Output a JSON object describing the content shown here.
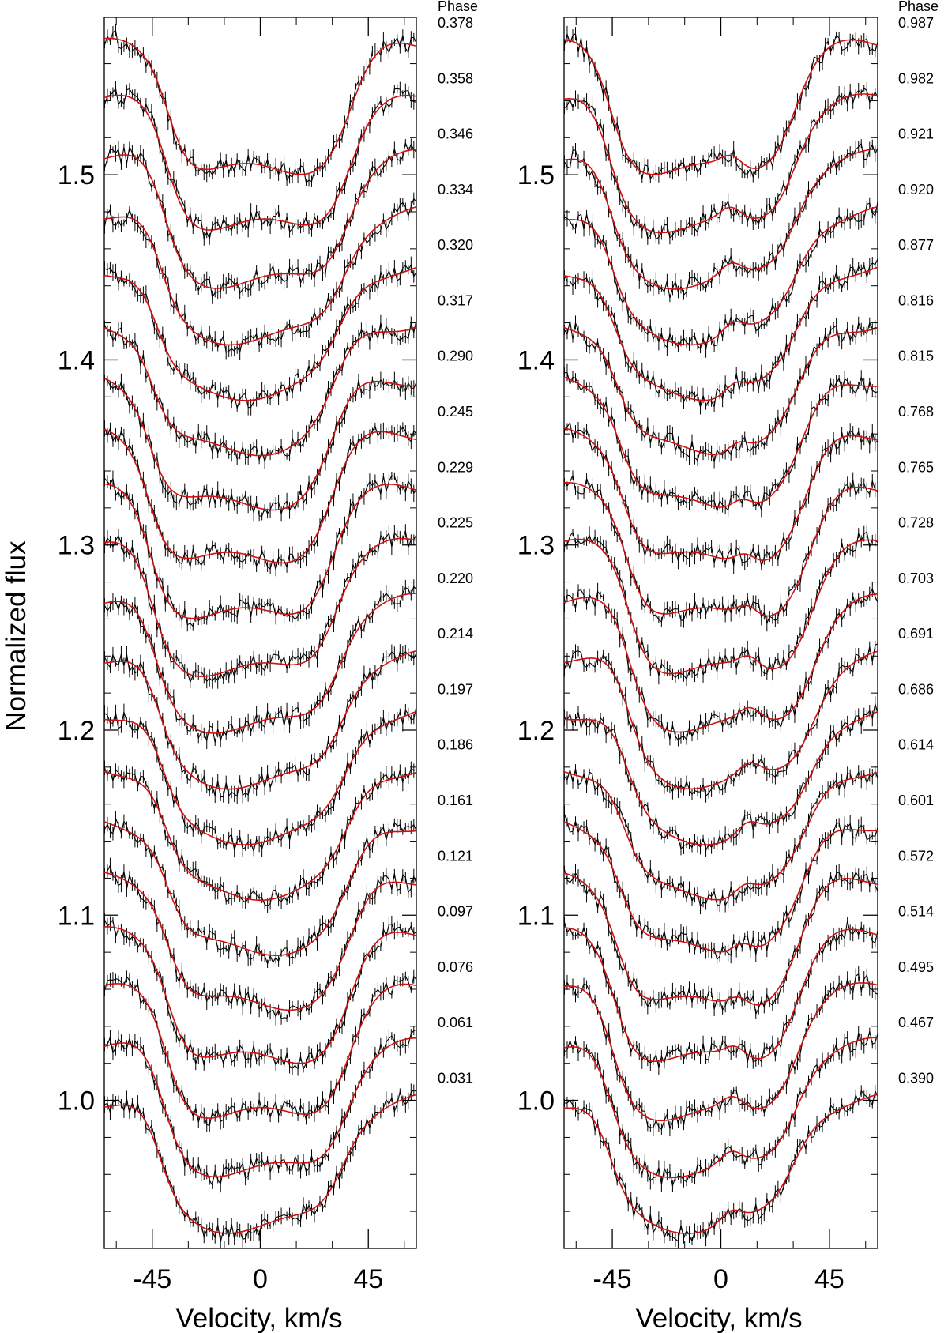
{
  "chart_data": {
    "type": "line",
    "ylabel": "Normalized flux",
    "xlabel": "Velocity, km/s",
    "xlim": [
      -65,
      65
    ],
    "ylim": [
      0.92,
      1.585
    ],
    "x_ticks": [
      -45,
      0,
      45
    ],
    "x_tick_labels": [
      "-45",
      "0",
      "45"
    ],
    "y_ticks": [
      1.0,
      1.1,
      1.2,
      1.3,
      1.4,
      1.5
    ],
    "y_tick_labels": [
      "1.0",
      "1.1",
      "1.2",
      "1.3",
      "1.4",
      "1.5"
    ],
    "series_colors": {
      "observed": "#000000",
      "model": "#d01010"
    },
    "panels": [
      {
        "phase_title": "Phase",
        "offset_step": 0.03,
        "phases": [
          "0.031",
          "0.061",
          "0.076",
          "0.097",
          "0.121",
          "0.161",
          "0.186",
          "0.197",
          "0.214",
          "0.220",
          "0.225",
          "0.229",
          "0.245",
          "0.290",
          "0.317",
          "0.320",
          "0.334",
          "0.346",
          "0.358",
          "0.378"
        ]
      },
      {
        "phase_title": "Phase",
        "offset_step": 0.03,
        "phases": [
          "0.390",
          "0.467",
          "0.495",
          "0.514",
          "0.572",
          "0.601",
          "0.614",
          "0.686",
          "0.691",
          "0.703",
          "0.728",
          "0.765",
          "0.768",
          "0.815",
          "0.816",
          "0.877",
          "0.920",
          "0.921",
          "0.982",
          "0.987"
        ]
      }
    ]
  }
}
